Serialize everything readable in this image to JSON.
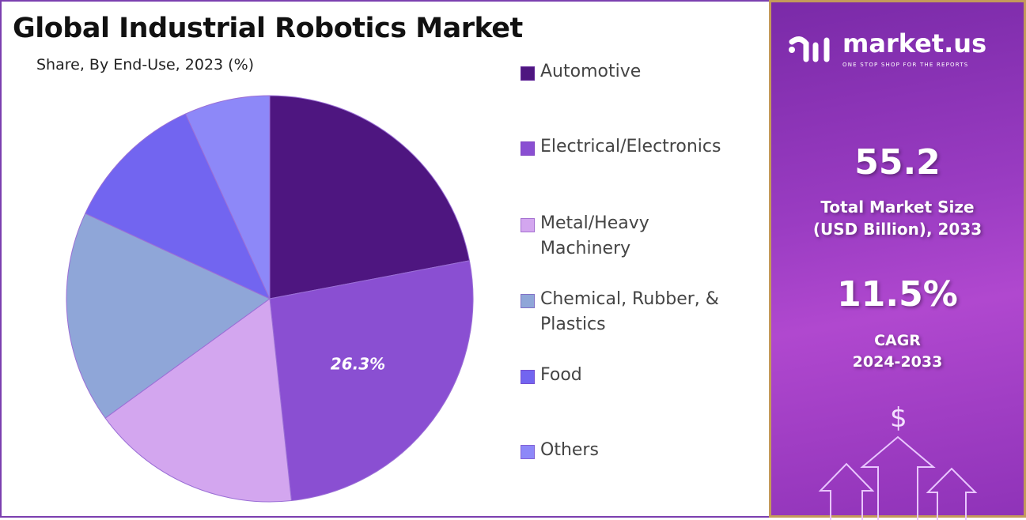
{
  "chart_data": {
    "type": "pie",
    "title": "Global Industrial Robotics Market",
    "subtitle": "Share, By End-Use, 2023 (%)",
    "categories": [
      "Automotive",
      "Electrical/Electronics",
      "Metal/Heavy Machinery",
      "Chemical, Rubber, & Plastics",
      "Food",
      "Others"
    ],
    "values": [
      22.0,
      26.3,
      16.7,
      16.9,
      11.3,
      6.8
    ],
    "colors": [
      "#4e1680",
      "#8a4fd2",
      "#d3a6ef",
      "#8fa6d8",
      "#7265f0",
      "#8d88f8"
    ],
    "data_labels": [
      null,
      "26.3%",
      null,
      null,
      null,
      null
    ],
    "legend_position": "right"
  },
  "legend": {
    "items": [
      {
        "lines": [
          "Automotive"
        ]
      },
      {
        "lines": [
          "Electrical/Electronics"
        ]
      },
      {
        "lines": [
          "Metal/Heavy",
          "Machinery"
        ]
      },
      {
        "lines": [
          "Chemical, Rubber, &",
          "Plastics"
        ]
      },
      {
        "lines": [
          "Food"
        ]
      },
      {
        "lines": [
          "Others"
        ]
      }
    ]
  },
  "sidebar": {
    "brand": "market.us",
    "tagline": "ONE STOP SHOP FOR THE REPORTS",
    "market_size": "55.2",
    "market_size_label_1": "Total Market Size",
    "market_size_label_2": "(USD Billion), 2033",
    "cagr": "11.5%",
    "cagr_label": "CAGR",
    "cagr_period": "2024-2033",
    "dollar_icon": "$"
  }
}
